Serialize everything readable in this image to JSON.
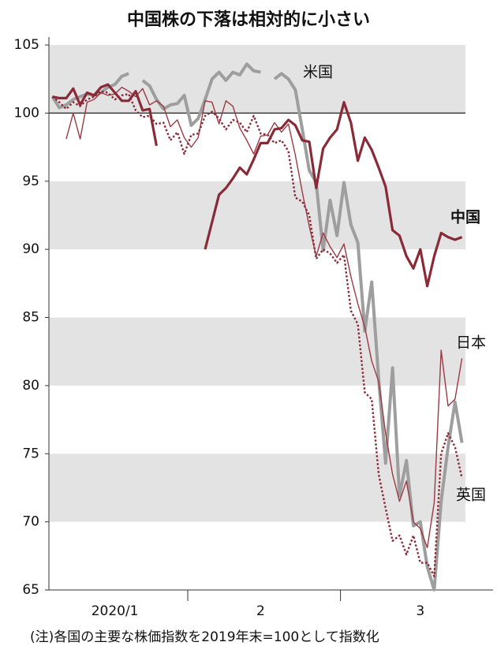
{
  "chart_data": {
    "type": "line",
    "title": "中国株の下落は相対的に小さい",
    "note": "(注)各国の主要な株価指数を2019年末=100として指数化",
    "categories": [
      null,
      null,
      null,
      null,
      null,
      null,
      null,
      null,
      null,
      "2020/1",
      null,
      null,
      null,
      null,
      null,
      null,
      null,
      null,
      null,
      null,
      null,
      null,
      null,
      null,
      null,
      null,
      null,
      null,
      null,
      null,
      "2",
      null,
      null,
      null,
      null,
      null,
      null,
      null,
      null,
      null,
      null,
      null,
      null,
      null,
      null,
      null,
      null,
      null,
      null,
      null,
      null,
      null,
      null,
      "3",
      null,
      null,
      null,
      null,
      null,
      null
    ],
    "series": [
      {
        "name": "中国",
        "color": "#8a2a37",
        "width": 3.2,
        "dash": false,
        "values": [
          101.2,
          101.1,
          101.1,
          101.8,
          100.6,
          101.5,
          101.3,
          101.9,
          102.1,
          101.5,
          100.9,
          100.9,
          101.6,
          100.2,
          100.3,
          97.6,
          null,
          null,
          null,
          null,
          null,
          null,
          90.0,
          92.0,
          94.0,
          94.5,
          95.2,
          96.0,
          95.5,
          96.6,
          97.8,
          97.8,
          98.8,
          98.9,
          99.5,
          99.1,
          98.0,
          97.9,
          94.5,
          97.4,
          98.2,
          98.8,
          100.8,
          99.3,
          96.5,
          98.2,
          97.3,
          96.0,
          94.6,
          91.4,
          91.0,
          89.5,
          88.6,
          90.0,
          87.3,
          89.5,
          91.2,
          90.9,
          90.7,
          90.9
        ]
      },
      {
        "name": "米国",
        "color": "#9e9e9e",
        "width": 4,
        "dash": false,
        "values": [
          101.2,
          100.4,
          100.6,
          101.0,
          101.2,
          101.4,
          101.3,
          101.5,
          101.9,
          102.1,
          102.7,
          102.9,
          null,
          102.4,
          102.0,
          101.0,
          100.3,
          100.6,
          100.7,
          101.3,
          99.1,
          99.6,
          101.0,
          102.5,
          103.0,
          102.4,
          103.0,
          102.8,
          103.6,
          103.1,
          103.0,
          null,
          102.5,
          102.9,
          102.5,
          101.7,
          98.8,
          95.8,
          94.9,
          89.9,
          93.6,
          91.0,
          94.9,
          91.8,
          90.5,
          84.0,
          87.6,
          80.5,
          74.3,
          81.3,
          71.9,
          74.5,
          69.7,
          70.0,
          66.7,
          65.0,
          71.5,
          75.5,
          78.8,
          75.8
        ]
      },
      {
        "name": "日本",
        "color": "#9b3a44",
        "width": 1.4,
        "dash": false,
        "values": [
          null,
          null,
          98.1,
          100.0,
          98.1,
          100.8,
          101.0,
          101.5,
          101.3,
          101.4,
          101.9,
          101.6,
          101.2,
          101.8,
          100.6,
          100.9,
          100.5,
          99.0,
          99.5,
          98.2,
          97.5,
          98.2,
          100.9,
          100.8,
          99.2,
          100.9,
          100.5,
          98.9,
          98.0,
          97.0,
          98.3,
          98.4,
          99.3,
          98.6,
          99.2,
          96.9,
          94.2,
          91.7,
          89.5,
          91.2,
          90.2,
          89.4,
          90.4,
          88.0,
          86.0,
          84.3,
          81.8,
          80.3,
          76.5,
          73.5,
          71.5,
          73.0,
          70.0,
          69.5,
          68.1,
          71.4,
          82.6,
          78.5,
          79.0,
          82.0
        ]
      },
      {
        "name": "英国",
        "color": "#8a2a37",
        "width": 2.4,
        "dash": true,
        "values": [
          101.2,
          100.8,
          100.3,
          100.8,
          100.5,
          101.0,
          101.2,
          101.6,
          101.5,
          101.0,
          101.3,
          101.4,
          100.2,
          99.7,
          99.8,
          99.2,
          99.3,
          98.0,
          98.6,
          97.0,
          98.4,
          98.5,
          99.8,
          100.1,
          99.6,
          98.8,
          99.5,
          99.3,
          98.6,
          99.8,
          98.5,
          98.4,
          97.8,
          98.0,
          97.2,
          93.8,
          93.5,
          92.5,
          89.3,
          90.0,
          89.7,
          89.0,
          89.6,
          85.5,
          84.5,
          79.5,
          79.0,
          73.5,
          71.0,
          68.6,
          69.0,
          67.6,
          69.0,
          67.0,
          67.0,
          66.0,
          75.0,
          76.5,
          75.5,
          73.2
        ]
      }
    ],
    "ylim": [
      65,
      105
    ],
    "yticks": [
      65,
      70,
      75,
      80,
      85,
      90,
      95,
      100,
      105
    ],
    "reference_line": 100,
    "bands": true
  }
}
